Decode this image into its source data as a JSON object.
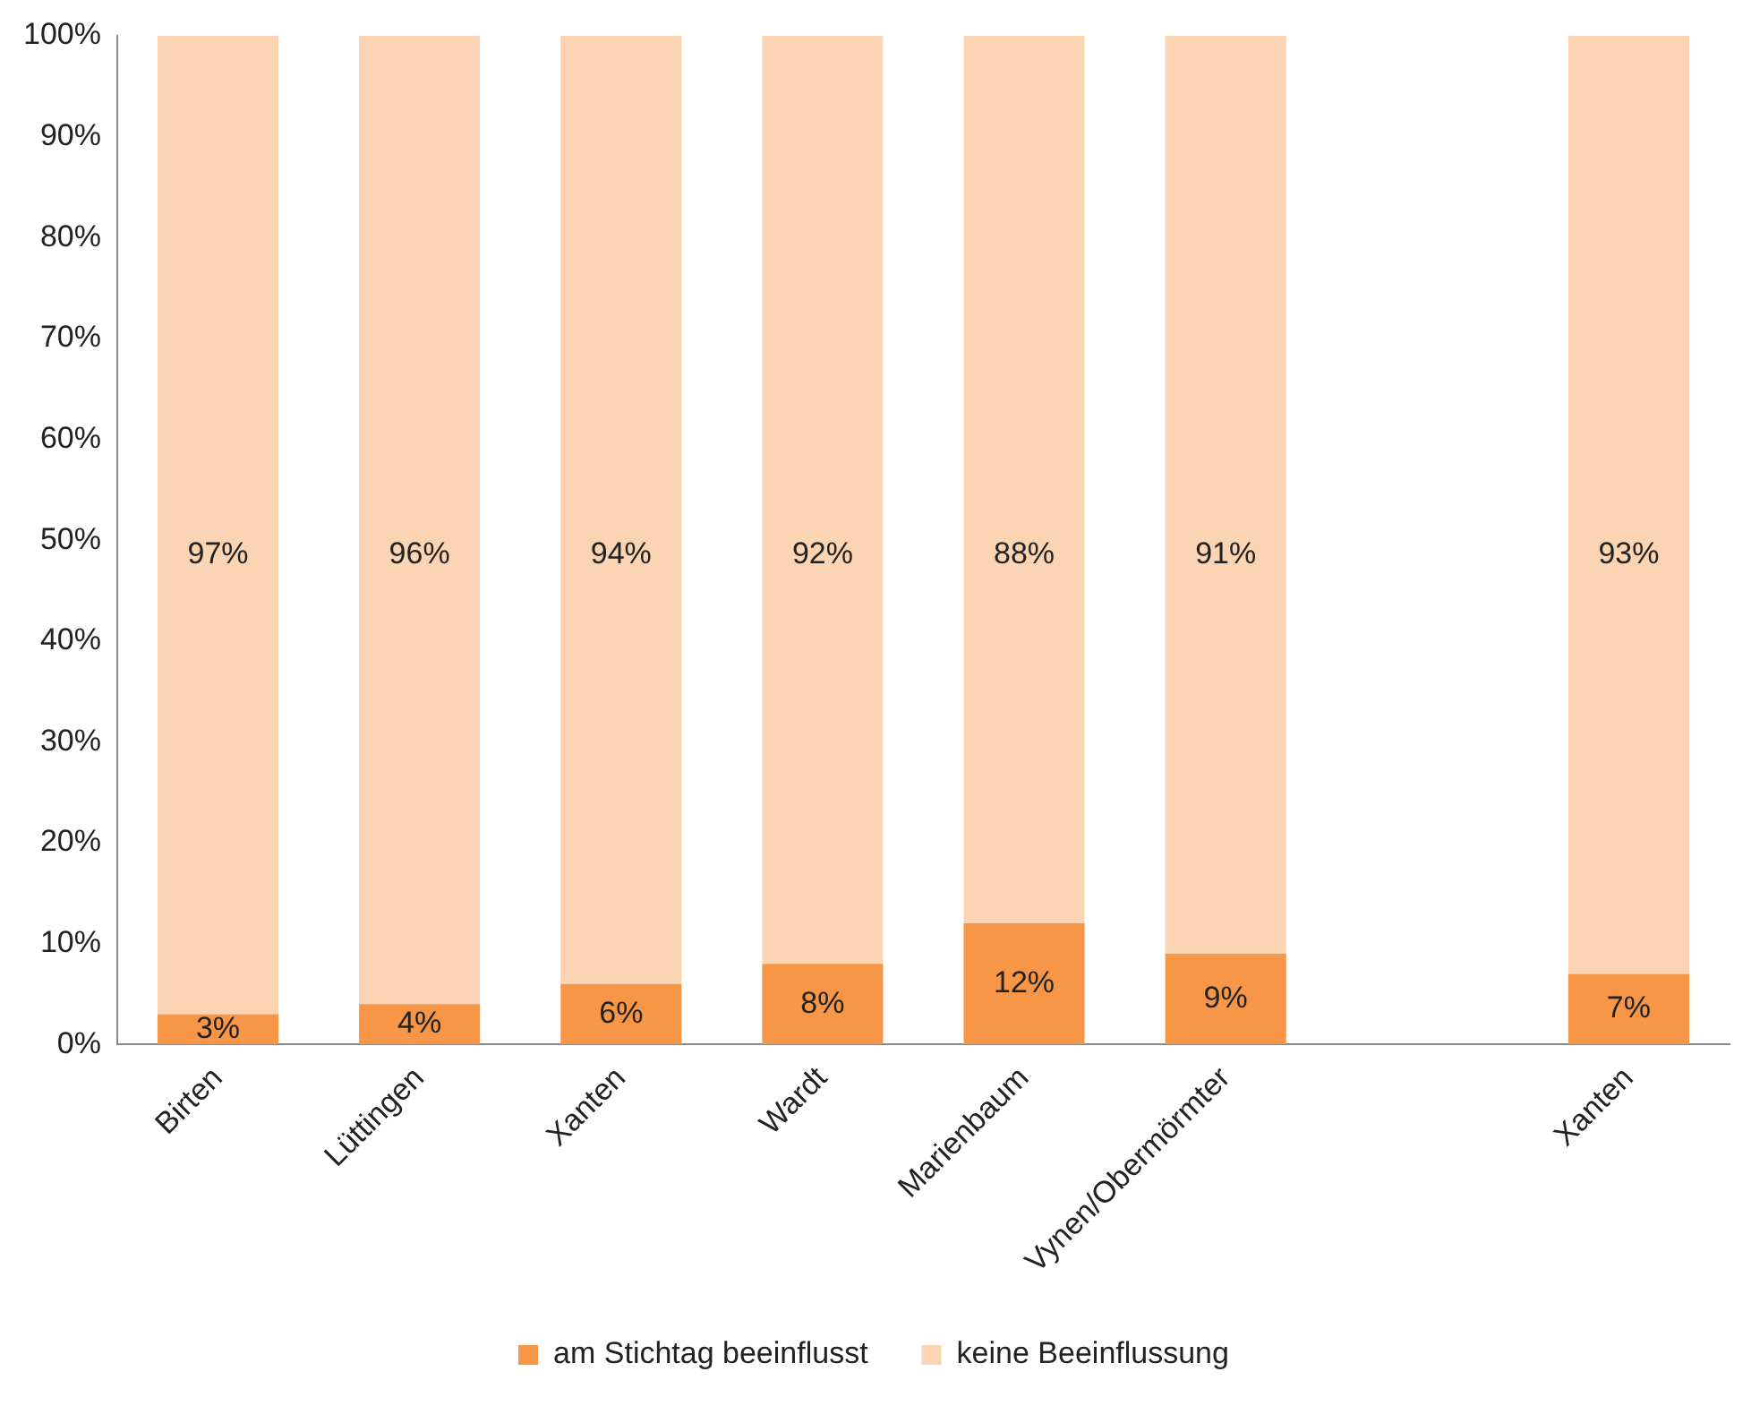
{
  "chart_data": {
    "type": "bar",
    "stacked": true,
    "categories": [
      "Birten",
      "Lüttingen",
      "Xanten",
      "Wardt",
      "Marienbaum",
      "Vynen/Obermörmter",
      null,
      "Xanten"
    ],
    "series": [
      {
        "name": "am Stichtag beeinflusst",
        "color": "#f79646",
        "values": [
          3,
          4,
          6,
          8,
          12,
          9,
          null,
          7
        ],
        "value_labels": [
          "3%",
          "4%",
          "6%",
          "8%",
          "12%",
          "9%",
          null,
          "7%"
        ]
      },
      {
        "name": "keine Beeinflussung",
        "color": "#fbd4b4",
        "values": [
          97,
          96,
          94,
          92,
          88,
          91,
          null,
          93
        ],
        "value_labels": [
          "97%",
          "96%",
          "94%",
          "92%",
          "88%",
          "91%",
          null,
          "93%"
        ]
      }
    ],
    "ylim": [
      0,
      100
    ],
    "yticks": [
      {
        "value": 0,
        "label": "0%"
      },
      {
        "value": 10,
        "label": "10%"
      },
      {
        "value": 20,
        "label": "20%"
      },
      {
        "value": 30,
        "label": "30%"
      },
      {
        "value": 40,
        "label": "40%"
      },
      {
        "value": 50,
        "label": "50%"
      },
      {
        "value": 60,
        "label": "60%"
      },
      {
        "value": 70,
        "label": "70%"
      },
      {
        "value": 80,
        "label": "80%"
      },
      {
        "value": 90,
        "label": "90%"
      },
      {
        "value": 100,
        "label": "100%"
      }
    ],
    "grid": false,
    "legend": "bottom"
  }
}
